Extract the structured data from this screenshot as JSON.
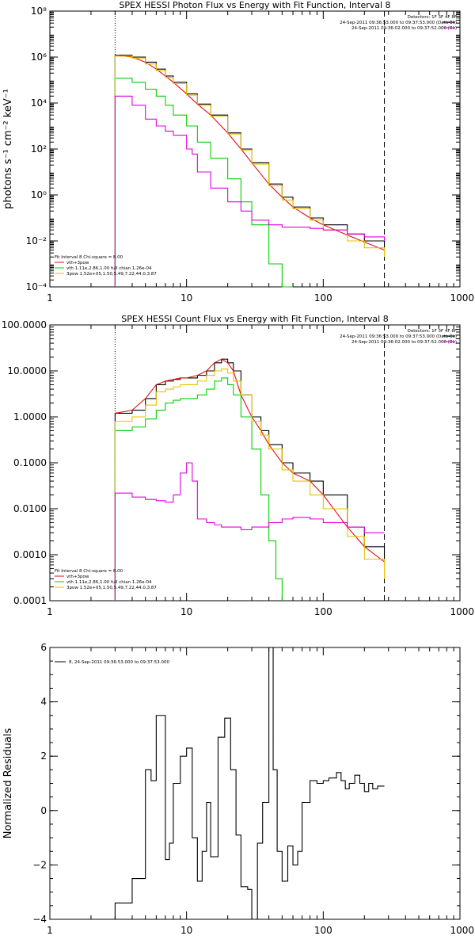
{
  "chart_data": [
    {
      "type": "line",
      "title": "SPEX HESSI Photon Flux vs Energy with Fit Function, Interval 8",
      "ylabel": "photons s⁻¹ cm⁻² keV⁻¹",
      "xlabel": "",
      "xscale": "log",
      "yscale": "log",
      "xlim": [
        1,
        1000
      ],
      "ylim": [
        0.0001,
        100000000
      ],
      "xticks": [
        1,
        10,
        100,
        1000
      ],
      "xtick_labels": [
        "1",
        "10",
        "100",
        "1000"
      ],
      "yticks": [
        0.0001,
        0.01,
        1,
        100,
        10000,
        1000000,
        100000000
      ],
      "ytick_labels": [
        "10⁻⁴",
        "10⁻²",
        "10⁰",
        "10²",
        "10⁴",
        "10⁶",
        "10⁸"
      ],
      "vlines": [
        {
          "x": 3,
          "style": "dotted"
        },
        {
          "x": 280,
          "style": "dashed"
        }
      ],
      "header_lines": [
        "Detectors: 1F 3F 4F 8F",
        "24-Sep-2011 09:36:53.000 to 09:37:53.000 (Data-Bk)",
        "24-Sep-2011 09:36:02.000 to 09:37:52.000 (Bk)"
      ],
      "fit_legend": [
        "Fit Interval 8    Chi-square = 8.00",
        "vth+3pow",
        "vth 1.11e,2.86,1.00  full chian 1.26e-04",
        "3pow 1.52e+05,1.50,5.49,7.22,44.0,3.87"
      ],
      "series": [
        {
          "color": "#000000",
          "style": "step",
          "x": [
            3,
            4,
            5,
            6,
            7,
            8,
            10,
            12,
            15,
            20,
            25,
            30,
            40,
            50,
            60,
            80,
            100,
            150,
            200,
            280
          ],
          "y": [
            1200000,
            1000000,
            600000,
            300000,
            150000,
            80000,
            25000,
            9000,
            3000,
            500,
            100,
            25,
            3,
            0.8,
            0.3,
            0.1,
            0.05,
            0.02,
            0.01,
            0.005
          ]
        },
        {
          "color": "#e01010",
          "style": "line",
          "x": [
            3,
            4,
            5,
            6,
            7,
            8,
            10,
            12,
            15,
            20,
            25,
            30,
            40,
            50,
            60,
            80,
            100,
            150,
            200,
            280
          ],
          "y": [
            1200000,
            1000000,
            600000,
            300000,
            150000,
            80000,
            25000,
            9000,
            3000,
            500,
            100,
            25,
            3,
            0.8,
            0.3,
            0.1,
            0.05,
            0.018,
            0.009,
            0.004
          ]
        },
        {
          "color": "#00d000",
          "style": "step",
          "x": [
            3,
            4,
            5,
            6,
            7,
            8,
            10,
            12,
            15,
            20,
            25,
            30,
            40,
            50,
            60
          ],
          "y": [
            120000,
            80000,
            40000,
            20000,
            8000,
            3000,
            1000,
            200,
            40,
            5,
            0.5,
            0.05,
            0.001,
            0.0001,
            0.0001
          ]
        },
        {
          "color": "#e8c000",
          "style": "step",
          "x": [
            3,
            4,
            5,
            6,
            7,
            8,
            10,
            12,
            15,
            20,
            25,
            30,
            40,
            50,
            60,
            80,
            100,
            150,
            200,
            280
          ],
          "y": [
            1100000,
            900000,
            500000,
            260000,
            130000,
            70000,
            22000,
            8000,
            2700,
            450,
            90,
            22,
            2.5,
            0.6,
            0.25,
            0.08,
            0.03,
            0.01,
            0.005,
            0.002
          ]
        },
        {
          "color": "#e000e0",
          "style": "step",
          "x": [
            3,
            4,
            5,
            6,
            7,
            8,
            10,
            11,
            12,
            15,
            20,
            25,
            30,
            40,
            50,
            60,
            80,
            100,
            150,
            200,
            280
          ],
          "y": [
            20000,
            8000,
            2000,
            1000,
            600,
            400,
            100,
            60,
            10,
            2,
            0.5,
            0.2,
            0.08,
            0.05,
            0.04,
            0.04,
            0.035,
            0.03,
            0.02,
            0.015,
            0.01
          ]
        }
      ]
    },
    {
      "type": "line",
      "title": "SPEX HESSI Count Flux vs Energy with Fit Function, Interval 8",
      "ylabel": "",
      "xlabel": "",
      "xscale": "log",
      "yscale": "log",
      "xlim": [
        1,
        1000
      ],
      "ylim": [
        0.0001,
        100
      ],
      "xticks": [
        1,
        10,
        100,
        1000
      ],
      "xtick_labels": [
        "1",
        "10",
        "100",
        "1000"
      ],
      "yticks": [
        0.0001,
        0.001,
        0.01,
        0.1,
        1,
        10,
        100
      ],
      "ytick_labels": [
        "0.0001",
        "0.0010",
        "0.0100",
        "0.1000",
        "1.0000",
        "10.0000",
        "100.0000"
      ],
      "vlines": [
        {
          "x": 3,
          "style": "dotted"
        },
        {
          "x": 280,
          "style": "dashed"
        }
      ],
      "header_lines": [
        "Detectors: 1F 3F 4F 8F",
        "24-Sep-2011 09:36:53.000 to 09:37:53.000 (Data-Bk)",
        "24-Sep-2011 09:36:02.000 to 09:37:52.000 (Bk)"
      ],
      "fit_legend": [
        "Fit Interval 8    Chi-square = 8.00",
        "vth+3pow",
        "vth 1.11e,2.86,1.00  full chian 1.26e-04",
        "3pow 1.52e+05,1.50,5.49,7.22,44.0,3.87"
      ],
      "series": [
        {
          "color": "#000000",
          "style": "step",
          "x": [
            3,
            4,
            5,
            6,
            7,
            8,
            9,
            10,
            12,
            14,
            16,
            18,
            20,
            22,
            25,
            30,
            35,
            40,
            50,
            60,
            80,
            100,
            150,
            200,
            280
          ],
          "y": [
            1.2,
            1.4,
            2.5,
            5,
            6,
            6.5,
            7,
            7,
            8,
            10,
            15,
            18,
            15,
            10,
            3,
            1,
            0.5,
            0.25,
            0.1,
            0.06,
            0.04,
            0.02,
            0.004,
            0.0015,
            0.0007
          ]
        },
        {
          "color": "#e01010",
          "style": "line",
          "x": [
            3,
            4,
            5,
            6,
            7,
            8,
            9,
            10,
            12,
            14,
            16,
            18,
            20,
            22,
            25,
            30,
            35,
            40,
            50,
            60,
            80,
            100,
            150,
            200,
            280
          ],
          "y": [
            1.2,
            1.4,
            2.5,
            5,
            6,
            6.5,
            7,
            7,
            8,
            10,
            15,
            18,
            15,
            10,
            3,
            1,
            0.5,
            0.25,
            0.1,
            0.06,
            0.04,
            0.02,
            0.004,
            0.0015,
            0.0007
          ]
        },
        {
          "color": "#00d000",
          "style": "step",
          "x": [
            3,
            4,
            5,
            6,
            7,
            8,
            9,
            10,
            12,
            14,
            16,
            18,
            20,
            22,
            25,
            30,
            35,
            40,
            45,
            50
          ],
          "y": [
            0.5,
            0.6,
            0.9,
            1.4,
            2,
            2.3,
            2.5,
            2.5,
            3,
            4,
            6,
            7,
            5,
            3,
            1,
            0.2,
            0.02,
            0.002,
            0.0003,
            0.0001
          ]
        },
        {
          "color": "#e8c000",
          "style": "step",
          "x": [
            3,
            4,
            5,
            6,
            7,
            8,
            9,
            10,
            12,
            14,
            16,
            18,
            20,
            22,
            25,
            30,
            35,
            40,
            50,
            60,
            80,
            100,
            150,
            200,
            280
          ],
          "y": [
            0.8,
            1,
            1.8,
            3.5,
            4,
            4.5,
            5,
            5,
            6,
            8,
            10,
            11,
            9,
            6,
            3,
            0.8,
            0.4,
            0.2,
            0.07,
            0.04,
            0.02,
            0.01,
            0.0025,
            0.0008,
            0.0003
          ]
        },
        {
          "color": "#e000e0",
          "style": "step",
          "x": [
            3,
            4,
            5,
            6,
            7,
            8,
            9,
            10,
            11,
            12,
            14,
            16,
            18,
            20,
            25,
            30,
            35,
            40,
            50,
            60,
            80,
            100,
            150,
            200,
            280
          ],
          "y": [
            0.022,
            0.018,
            0.016,
            0.015,
            0.014,
            0.02,
            0.06,
            0.1,
            0.04,
            0.006,
            0.005,
            0.0045,
            0.004,
            0.004,
            0.0035,
            0.004,
            0.004,
            0.005,
            0.006,
            0.0065,
            0.006,
            0.005,
            0.004,
            0.003,
            0.003
          ]
        }
      ]
    },
    {
      "type": "line",
      "title": "",
      "ylabel": "Normalized Residuals",
      "xlabel": "",
      "xscale": "log",
      "yscale": "linear",
      "xlim": [
        1,
        1000
      ],
      "ylim": [
        -4,
        6
      ],
      "xticks": [
        1,
        10,
        100,
        1000
      ],
      "xtick_labels": [
        "1",
        "10",
        "100",
        "1000"
      ],
      "yticks": [
        -4,
        -2,
        0,
        2,
        4,
        6
      ],
      "ytick_labels": [
        "−4",
        "−2",
        "0",
        "2",
        "4",
        "6"
      ],
      "legend": "8, 24-Sep-2011 09:36:53.000 to 09:37:53.000",
      "series": [
        {
          "color": "#000000",
          "style": "step",
          "x": [
            3,
            4,
            5,
            5.5,
            6,
            7,
            7.5,
            8,
            9,
            10,
            11,
            12,
            13,
            14,
            15,
            17,
            19,
            21,
            23,
            25,
            28,
            30,
            33,
            36,
            40,
            43,
            46,
            50,
            55,
            60,
            65,
            70,
            80,
            90,
            100,
            110,
            125,
            135,
            145,
            155,
            170,
            185,
            200,
            215,
            230,
            250,
            280
          ],
          "y": [
            -3.4,
            -2.5,
            1.5,
            1.1,
            3.5,
            -1.8,
            -1.2,
            1.0,
            2.0,
            2.3,
            -1.0,
            -2.6,
            -1.5,
            0.3,
            -1.7,
            2.7,
            3.4,
            1.5,
            -0.9,
            -2.8,
            -2.9,
            -4.0,
            -1.2,
            0.3,
            6.0,
            1.5,
            -1.5,
            -2.6,
            -1.3,
            -2.0,
            -1.5,
            0.3,
            1.1,
            1.0,
            1.1,
            1.2,
            1.4,
            1.1,
            0.8,
            1.0,
            1.3,
            1.0,
            0.7,
            1.0,
            0.8,
            0.9,
            0.9
          ]
        }
      ]
    }
  ]
}
